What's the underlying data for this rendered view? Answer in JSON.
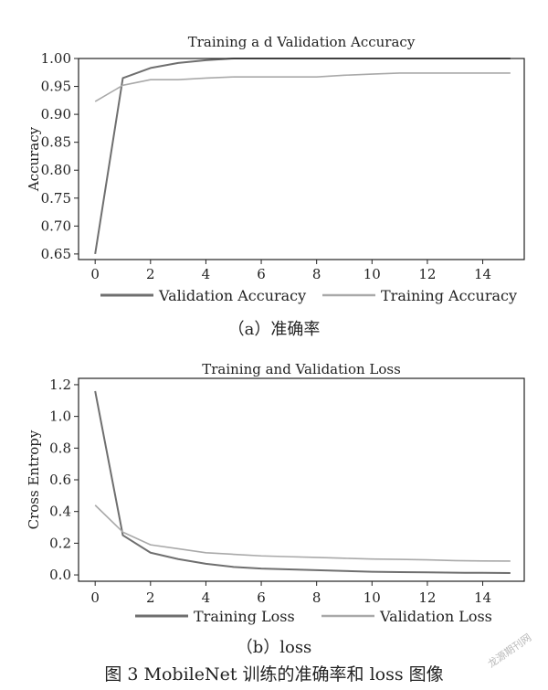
{
  "figure_caption": "图 3 MobileNet 训练的准确率和 loss 图像",
  "watermark": "龙源期刊网",
  "colors": {
    "dark": "#6f6f6f",
    "light": "#a9a9a9",
    "axis": "#222222"
  },
  "chart_data": [
    {
      "type": "line",
      "title": "Training a d Validation Accuracy",
      "ylabel": "Accuracy",
      "xlabel": "",
      "sublabel": "（a）准确率",
      "xlim": [
        -0.6,
        15.5
      ],
      "ylim": [
        0.64,
        1.0
      ],
      "xticks": [
        "0",
        "2",
        "4",
        "6",
        "8",
        "10",
        "12",
        "14"
      ],
      "yticks": [
        "0.65",
        "0.70",
        "0.75",
        "0.80",
        "0.85",
        "0.90",
        "0.95",
        "1.00"
      ],
      "legend": "bottom",
      "grid": false,
      "series": [
        {
          "name": "Validation Accuracy",
          "color": "#6f6f6f",
          "x": [
            0,
            1,
            2,
            3,
            4,
            5,
            6,
            7,
            8,
            9,
            10,
            11,
            12,
            13,
            14,
            15
          ],
          "values": [
            0.65,
            0.965,
            0.983,
            0.992,
            0.997,
            1.0,
            1.0,
            1.0,
            1.0,
            1.0,
            1.0,
            1.0,
            1.0,
            1.0,
            1.0,
            1.0
          ]
        },
        {
          "name": "Training Accuracy",
          "color": "#a9a9a9",
          "x": [
            0,
            1,
            2,
            3,
            4,
            5,
            6,
            7,
            8,
            9,
            10,
            11,
            12,
            13,
            14,
            15
          ],
          "values": [
            0.923,
            0.952,
            0.962,
            0.962,
            0.965,
            0.967,
            0.967,
            0.967,
            0.967,
            0.97,
            0.972,
            0.974,
            0.974,
            0.974,
            0.974,
            0.974
          ]
        }
      ]
    },
    {
      "type": "line",
      "title": "Training and Validation Loss",
      "ylabel": "Cross Entropy",
      "xlabel": "",
      "sublabel": "（b）loss",
      "xlim": [
        -0.6,
        15.5
      ],
      "ylim": [
        -0.04,
        1.24
      ],
      "xticks": [
        "0",
        "2",
        "4",
        "6",
        "8",
        "10",
        "12",
        "14"
      ],
      "yticks": [
        "0.0",
        "0.2",
        "0.4",
        "0.6",
        "0.8",
        "1.0",
        "1.2"
      ],
      "legend": "bottom",
      "grid": false,
      "series": [
        {
          "name": "Training Loss",
          "color": "#6f6f6f",
          "x": [
            0,
            1,
            2,
            3,
            4,
            5,
            6,
            7,
            8,
            9,
            10,
            11,
            12,
            13,
            14,
            15
          ],
          "values": [
            1.16,
            0.25,
            0.14,
            0.1,
            0.07,
            0.05,
            0.04,
            0.035,
            0.03,
            0.025,
            0.02,
            0.018,
            0.016,
            0.014,
            0.013,
            0.012
          ]
        },
        {
          "name": "Validation Loss",
          "color": "#a9a9a9",
          "x": [
            0,
            1,
            2,
            3,
            4,
            5,
            6,
            7,
            8,
            9,
            10,
            11,
            12,
            13,
            14,
            15
          ],
          "values": [
            0.44,
            0.27,
            0.19,
            0.165,
            0.14,
            0.13,
            0.12,
            0.115,
            0.11,
            0.105,
            0.1,
            0.098,
            0.095,
            0.09,
            0.088,
            0.087
          ]
        }
      ]
    }
  ]
}
